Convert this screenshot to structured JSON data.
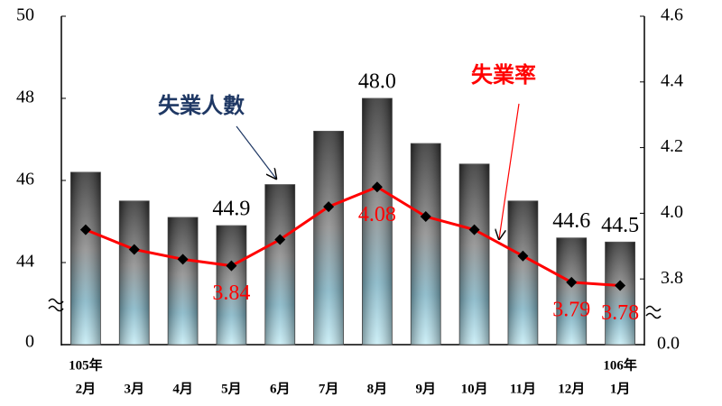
{
  "chart_data": {
    "type": "bar_line",
    "categories": [
      "2月",
      "3月",
      "4月",
      "5月",
      "6月",
      "7月",
      "8月",
      "9月",
      "10月",
      "11月",
      "12月",
      "1月"
    ],
    "x_group_labels": [
      "105年",
      null,
      null,
      null,
      null,
      null,
      null,
      null,
      null,
      null,
      null,
      "106年"
    ],
    "series": [
      {
        "name": "失業人數",
        "type": "bar",
        "color": "#3a3a3a",
        "axis": "y",
        "values": [
          46.2,
          45.5,
          45.1,
          44.9,
          45.9,
          47.2,
          48.0,
          46.9,
          46.4,
          45.5,
          44.6,
          44.5
        ],
        "value_labels": [
          null,
          null,
          null,
          "44.9",
          null,
          null,
          "48.0",
          null,
          null,
          null,
          "44.6",
          "44.5"
        ]
      },
      {
        "name": "失業率",
        "type": "line",
        "color": "#ff0000",
        "axis": "y2",
        "values": [
          3.95,
          3.89,
          3.86,
          3.84,
          3.92,
          4.02,
          4.08,
          3.99,
          3.95,
          3.87,
          3.79,
          3.78
        ],
        "value_labels": [
          null,
          null,
          null,
          "3.84",
          null,
          null,
          "4.08",
          null,
          null,
          null,
          "3.79",
          "3.78"
        ]
      }
    ],
    "ylim": [
      42,
      50
    ],
    "yticks": [
      44,
      46,
      48,
      50
    ],
    "y_break_label": "0",
    "y2lim": [
      3.6,
      4.6
    ],
    "y2ticks": [
      {
        "value": 3.8,
        "label": "3.8"
      },
      {
        "value": 4.0,
        "label": "4.0"
      },
      {
        "value": 4.2,
        "label": "4.2"
      },
      {
        "value": 4.4,
        "label": "4.4"
      },
      {
        "value": 4.6,
        "label": "4.6"
      }
    ],
    "y2_break_label": "0.0",
    "grid": false
  }
}
